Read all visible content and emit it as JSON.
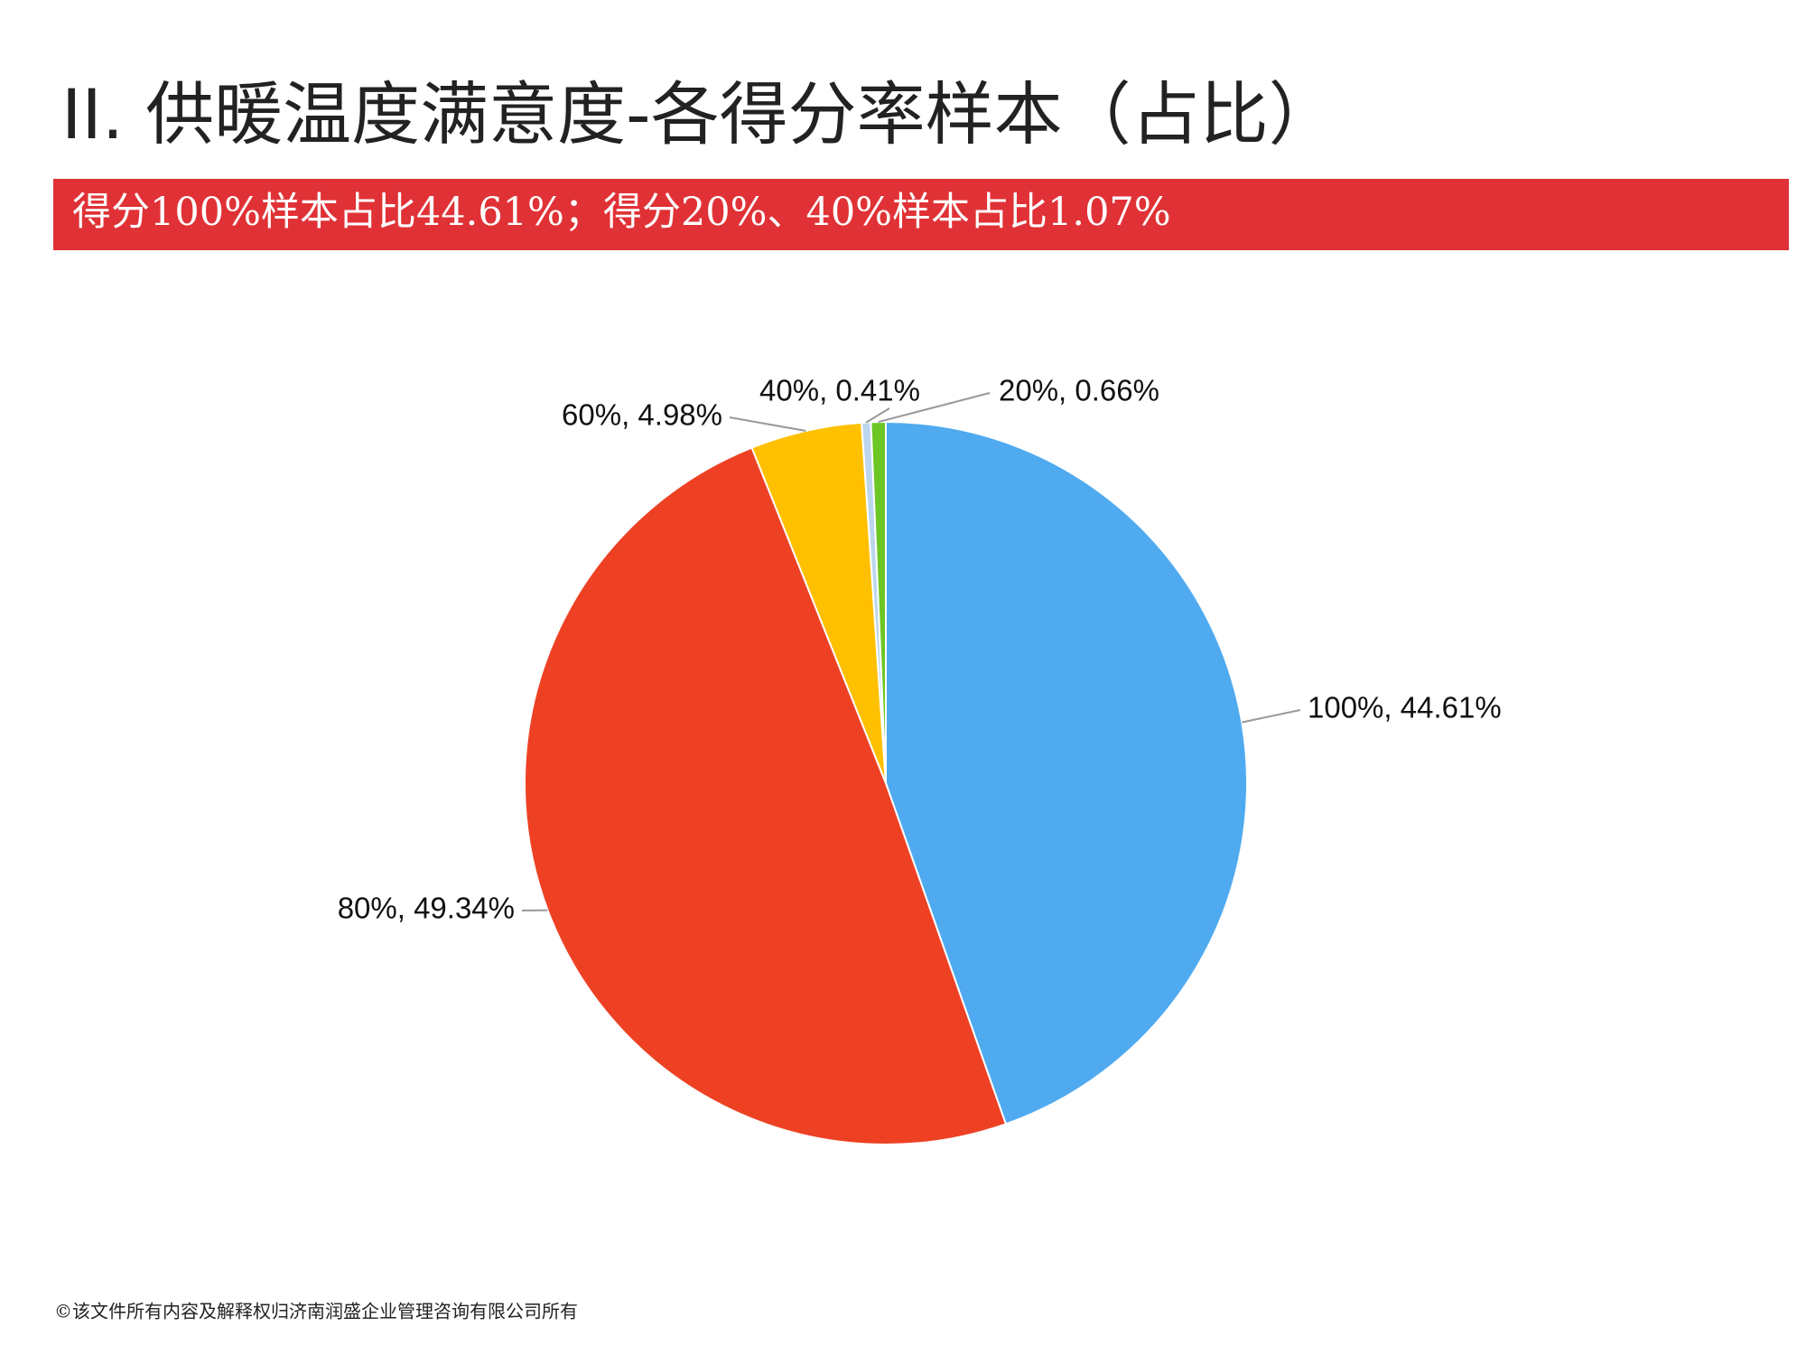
{
  "header": {
    "title": "II.  供暖温度满意度-各得分率样本（占比）",
    "banner": "得分100%样本占比44.61%；得分20%、40%样本占比1.07%"
  },
  "chart_data": {
    "type": "pie",
    "values": [
      44.61,
      49.34,
      4.98,
      0.41,
      0.66
    ],
    "value_labels": [
      "100%, 44.61%",
      "80%, 49.34%",
      "60%, 4.98%",
      "40%, 0.41%",
      "20%, 0.66%"
    ],
    "colors": [
      "#4faaf0",
      "#ee4124",
      "#ffc000",
      "#bcd6ee",
      "#6cc624"
    ]
  },
  "footer": "©该文件所有内容及解释权归济南润盛企业管理咨询有限公司所有"
}
